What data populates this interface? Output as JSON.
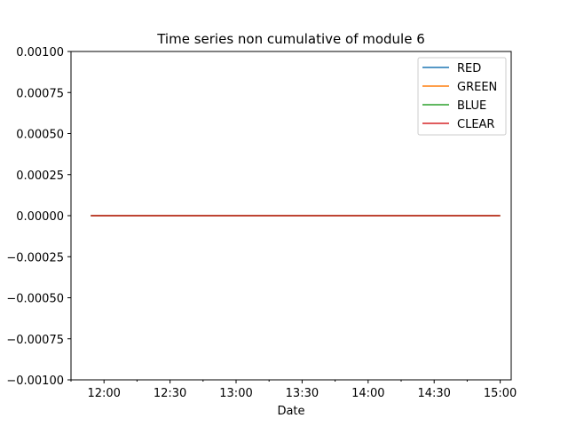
{
  "chart_data": {
    "type": "line",
    "title": "Time series non cumulative of module 6",
    "xlabel": "Date",
    "ylabel": "",
    "x_range": [
      "11:45",
      "15:05"
    ],
    "ylim": [
      -0.001,
      0.001
    ],
    "x_ticks": [
      "12:00",
      "12:30",
      "13:00",
      "13:30",
      "14:00",
      "14:30",
      "15:00"
    ],
    "y_ticks": [
      0.001,
      0.00075,
      0.0005,
      0.00025,
      0.0,
      -0.00025,
      -0.0005,
      -0.00075,
      -0.001
    ],
    "y_tick_labels": [
      "0.00100",
      "0.00075",
      "0.00050",
      "0.00025",
      "0.00000",
      "−0.00025",
      "−0.00050",
      "−0.00075",
      "−0.00100"
    ],
    "grid": false,
    "legend_position": "top-right",
    "x": [
      "11:54",
      "15:00"
    ],
    "series": [
      {
        "name": "RED",
        "color": "#1f77b4",
        "values": [
          0,
          0
        ]
      },
      {
        "name": "GREEN",
        "color": "#ff7f0e",
        "values": [
          0,
          0
        ]
      },
      {
        "name": "BLUE",
        "color": "#2ca02c",
        "values": [
          0,
          0
        ]
      },
      {
        "name": "CLEAR",
        "color": "#d62728",
        "values": [
          0,
          0
        ]
      }
    ]
  }
}
